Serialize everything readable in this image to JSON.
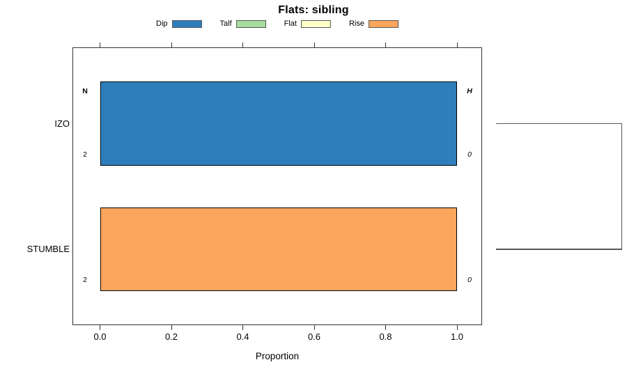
{
  "chart_data": {
    "type": "bar",
    "orientation": "horizontal",
    "stacked": true,
    "title": "Flats: sibling",
    "xlabel": "Proportion",
    "xlim": [
      0,
      1
    ],
    "grid": false,
    "legend_position": "top",
    "x_ticks": [
      "0.0",
      "0.2",
      "0.4",
      "0.6",
      "0.8",
      "1.0"
    ],
    "x_tick_values": [
      0,
      0.2,
      0.4,
      0.6,
      0.8,
      1.0
    ],
    "legend": [
      {
        "label": "Dip",
        "color": "#2E7EBB"
      },
      {
        "label": "Talf",
        "color": "#A8DBA0"
      },
      {
        "label": "Flat",
        "color": "#FFFFC8"
      },
      {
        "label": "Rise",
        "color": "#FBA55D"
      }
    ],
    "categories": [
      "IZO",
      "STUMBLE"
    ],
    "series": [
      {
        "name": "Dip",
        "values": [
          1.0,
          0
        ]
      },
      {
        "name": "Talf",
        "values": [
          0,
          0
        ]
      },
      {
        "name": "Flat",
        "values": [
          0,
          0
        ]
      },
      {
        "name": "Rise",
        "values": [
          0,
          1.0
        ]
      }
    ],
    "annotations": {
      "left_header": "N",
      "right_header": "H",
      "left_values": [
        "2",
        "2"
      ],
      "right_values": [
        "0",
        "0"
      ]
    },
    "dendrogram": {
      "joined_leaves": [
        "IZO",
        "STUMBLE"
      ]
    },
    "colors": {
      "axis_line": "#333333",
      "bar_border": "#000000",
      "dendrogram_line": "#555555"
    }
  }
}
